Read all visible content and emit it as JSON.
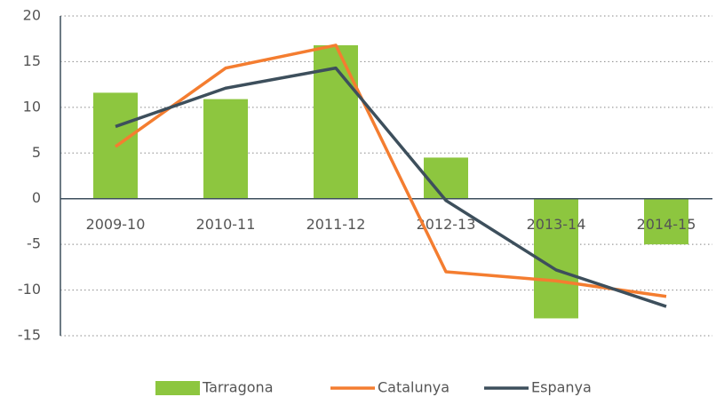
{
  "chart_data": {
    "type": "bar",
    "categories": [
      "2009-10",
      "2010-11",
      "2011-12",
      "2012-13",
      "2013-14",
      "2014-15"
    ],
    "series": [
      {
        "name": "Tarragona",
        "type": "bar",
        "color": "#8dc63f",
        "values": [
          11.6,
          10.9,
          16.8,
          4.5,
          -13.1,
          -5.0
        ]
      },
      {
        "name": "Catalunya",
        "type": "line",
        "color": "#f47d30",
        "values": [
          5.7,
          14.3,
          16.8,
          -8.0,
          -9.0,
          -10.7
        ]
      },
      {
        "name": "Espanya",
        "type": "line",
        "color": "#3d4f5c",
        "values": [
          7.9,
          12.1,
          14.3,
          -0.2,
          -7.8,
          -11.8
        ]
      }
    ],
    "ylim": [
      -15,
      20
    ],
    "yticks": [
      -15,
      -10,
      -5,
      0,
      5,
      10,
      15,
      20
    ],
    "grid": true,
    "legend": "bottom"
  }
}
